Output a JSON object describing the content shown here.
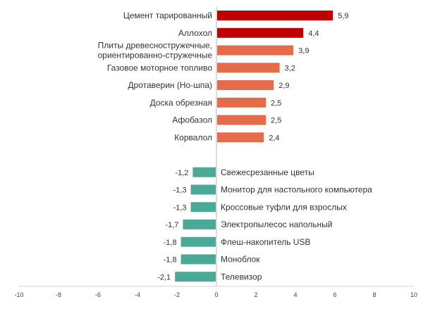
{
  "chart_data": {
    "type": "bar",
    "orientation": "horizontal",
    "title": "",
    "xlabel": "",
    "ylabel": "",
    "xlim": [
      -10,
      10
    ],
    "xticks": [
      -10,
      -8,
      -6,
      -4,
      -2,
      0,
      2,
      4,
      6,
      8,
      10
    ],
    "grid": false,
    "colors": {
      "top": "#C00000",
      "positive": "#E46C4A",
      "negative": "#4AAA96",
      "axis": "#D0D0D0"
    },
    "categories": [
      "Цемент тарированный",
      "Аллохол",
      "Плиты древесностружечные,\nориентированно-стружечные",
      "Газовое моторное топливо",
      "Дротаверин (Но-шпа)",
      "Доска обрезная",
      "Афобазол",
      "Корвалол",
      "Свежесрезанные цветы",
      "Монитор для настольного компьютера",
      "Кроссовые туфли  для взрослых",
      "Электропылесос напольный",
      "Флеш-накопитель USB",
      "Моноблок",
      "Телевизор"
    ],
    "values": [
      5.9,
      4.4,
      3.9,
      3.2,
      2.9,
      2.5,
      2.5,
      2.4,
      -1.2,
      -1.3,
      -1.3,
      -1.7,
      -1.8,
      -1.8,
      -2.1
    ],
    "value_labels": [
      "5,9",
      "4,4",
      "3,9",
      "3,2",
      "2,9",
      "2,5",
      "2,5",
      "2,4",
      "-1,2",
      "-1,3",
      "-1,3",
      "-1,7",
      "-1,8",
      "-1,8",
      "-2,1"
    ],
    "tick_labels": [
      "-10",
      "-8",
      "-6",
      "-4",
      "-2",
      "0",
      "2",
      "4",
      "6",
      "8",
      "10"
    ],
    "highlighted_top": 2
  }
}
